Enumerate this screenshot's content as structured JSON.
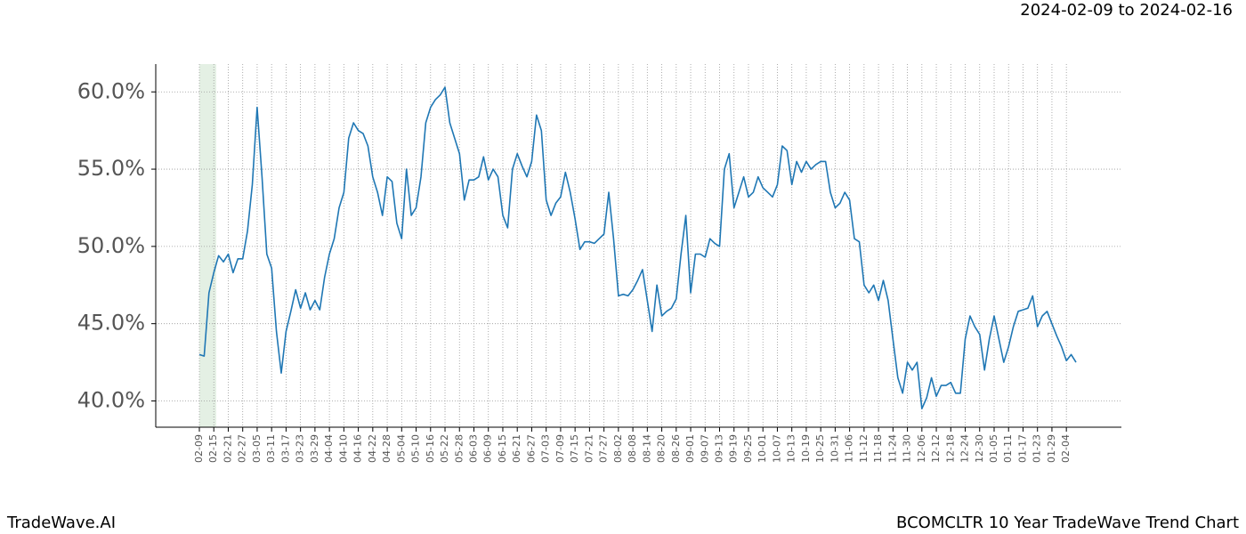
{
  "chart_data": {
    "type": "line",
    "title": "BCOMCLTR 10 Year TradeWave Trend Chart",
    "subtitle": "2024-02-09 to 2024-02-16",
    "brand": "TradeWave.AI",
    "categories": [
      "02-09",
      null,
      null,
      "02-15",
      null,
      null,
      "02-21",
      null,
      null,
      "02-27",
      null,
      null,
      "03-05",
      null,
      null,
      "03-11",
      null,
      null,
      "03-17",
      null,
      null,
      "03-23",
      null,
      null,
      "03-29",
      null,
      null,
      "04-04",
      null,
      null,
      "04-10",
      null,
      null,
      "04-16",
      null,
      null,
      "04-22",
      null,
      null,
      "04-28",
      null,
      null,
      "05-04",
      null,
      null,
      "05-10",
      null,
      null,
      "05-16",
      null,
      null,
      "05-22",
      null,
      null,
      "05-28",
      null,
      null,
      "06-03",
      null,
      null,
      "06-09",
      null,
      null,
      "06-15",
      null,
      null,
      "06-21",
      null,
      null,
      "06-27",
      null,
      null,
      "07-03",
      null,
      null,
      "07-09",
      null,
      null,
      "07-15",
      null,
      null,
      "07-21",
      null,
      null,
      "07-27",
      null,
      null,
      "08-02",
      null,
      null,
      "08-08",
      null,
      null,
      "08-14",
      null,
      null,
      "08-20",
      null,
      null,
      "08-26",
      null,
      null,
      "09-01",
      null,
      null,
      "09-07",
      null,
      null,
      "09-13",
      null,
      null,
      "09-19",
      null,
      null,
      "09-25",
      null,
      null,
      "10-01",
      null,
      null,
      "10-07",
      null,
      null,
      "10-13",
      null,
      null,
      "10-19",
      null,
      null,
      "10-25",
      null,
      null,
      "10-31",
      null,
      null,
      "11-06",
      null,
      null,
      "11-12",
      null,
      null,
      "11-18",
      null,
      null,
      "11-24",
      null,
      null,
      "11-30",
      null,
      null,
      "12-06",
      null,
      null,
      "12-12",
      null,
      null,
      "12-18",
      null,
      null,
      "12-24",
      null,
      null,
      "12-30",
      null,
      null,
      "01-05",
      null,
      null,
      "01-11",
      null,
      null,
      "01-17",
      null,
      null,
      "01-23",
      null,
      null,
      "01-29",
      null,
      null,
      "02-04",
      null,
      null
    ],
    "series": [
      {
        "color": "#1f77b4",
        "values": [
          43.0,
          42.9,
          47.0,
          48.3,
          49.4,
          49.0,
          49.5,
          48.3,
          49.2,
          49.2,
          51.0,
          54.0,
          59.0,
          54.5,
          49.5,
          48.6,
          44.5,
          41.8,
          44.5,
          45.8,
          47.2,
          46.0,
          47.0,
          45.9,
          46.5,
          45.9,
          48.0,
          49.5,
          50.5,
          52.5,
          53.5,
          57.0,
          58.0,
          57.5,
          57.3,
          56.5,
          54.5,
          53.5,
          52.0,
          54.5,
          54.2,
          51.5,
          50.5,
          55.0,
          52.0,
          52.5,
          54.5,
          58.0,
          59.0,
          59.5,
          59.8,
          60.3,
          58.0,
          57.0,
          56.0,
          53.0,
          54.3,
          54.3,
          54.5,
          55.8,
          54.3,
          55.0,
          54.5,
          52.0,
          51.2,
          55.0,
          56.0,
          55.2,
          54.5,
          55.5,
          58.5,
          57.5,
          53.0,
          52.0,
          52.8,
          53.2,
          54.8,
          53.5,
          51.8,
          49.8,
          50.3,
          50.3,
          50.2,
          50.5,
          50.8,
          53.5,
          50.5,
          46.8,
          46.9,
          46.8,
          47.2,
          47.8,
          48.5,
          46.5,
          44.5,
          47.5,
          45.5,
          45.8,
          46.0,
          46.6,
          49.5,
          52.0,
          47.0,
          49.5,
          49.5,
          49.3,
          50.5,
          50.2,
          50.0,
          55.0,
          56.0,
          52.5,
          53.5,
          54.5,
          53.2,
          53.5,
          54.5,
          53.8,
          53.5,
          53.2,
          54.0,
          56.5,
          56.2,
          54.0,
          55.5,
          54.8,
          55.5,
          55.0,
          55.3,
          55.5,
          55.5,
          53.5,
          52.5,
          52.8,
          53.5,
          53.0,
          50.5,
          50.3,
          47.5,
          47.0,
          47.5,
          46.5,
          47.8,
          46.5,
          44.0,
          41.5,
          40.5,
          42.5,
          42.0,
          42.5,
          39.5,
          40.2,
          41.5,
          40.3,
          41.0,
          41.0,
          41.2,
          40.5,
          40.5,
          44.0,
          45.5,
          44.8,
          44.3,
          42.0,
          44.0,
          45.5,
          44.0,
          42.5,
          43.5,
          44.8,
          45.8,
          45.9,
          46.0,
          46.8,
          44.8,
          45.5,
          45.8,
          45.0,
          44.2,
          43.5,
          42.6,
          43.0,
          42.5
        ]
      }
    ],
    "ylim": [
      38.3,
      61.8
    ],
    "yticks": [
      {
        "value": 40,
        "label": "40.0%"
      },
      {
        "value": 45,
        "label": "45.0%"
      },
      {
        "value": 50,
        "label": "50.0%"
      },
      {
        "value": 55,
        "label": "55.0%"
      },
      {
        "value": 60,
        "label": "60.0%"
      }
    ],
    "grid": true
  }
}
